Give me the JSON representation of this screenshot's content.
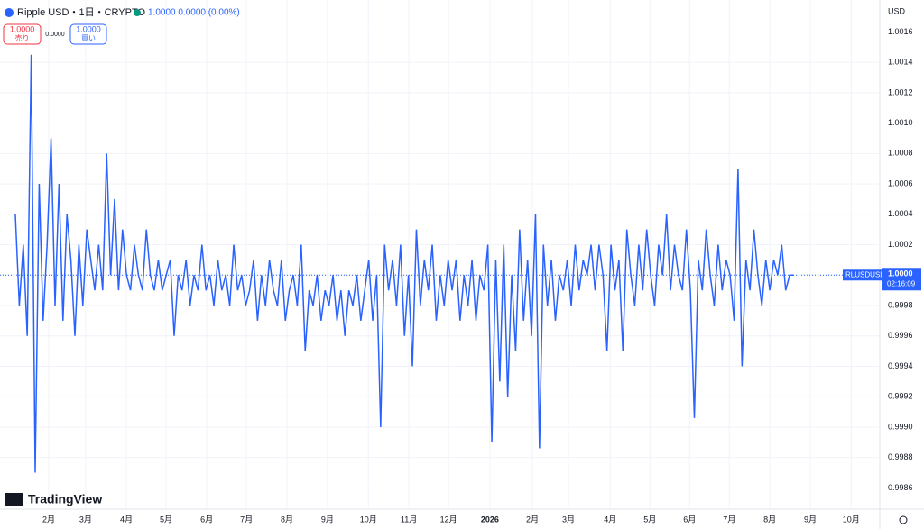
{
  "header": {
    "symbol": "Ripple USD・1日・CRYPTO",
    "quote": "1.0000 0.0000 (0.00%)",
    "sell_price": "1.0000",
    "sell_label": "売り",
    "spread": "0.0000",
    "buy_price": "1.0000",
    "buy_label": "買い",
    "currency": "USD",
    "logo": "TradingView"
  },
  "chart_data": {
    "type": "line",
    "series": [
      {
        "name": "RLUSDUSD",
        "color": "#2962ff",
        "values": [
          1.0004,
          0.9998,
          1.0002,
          0.9996,
          1.00145,
          0.9987,
          1.0006,
          0.9997,
          1.0002,
          1.0009,
          0.9998,
          1.0006,
          0.9997,
          1.0004,
          1.0001,
          0.9996,
          1.0002,
          0.9998,
          1.0003,
          1.0001,
          0.9999,
          1.0002,
          0.9999,
          1.0008,
          1.0,
          1.0005,
          0.9999,
          1.0003,
          1.0,
          0.9999,
          1.0002,
          1.0,
          0.9999,
          1.0003,
          1.0,
          0.9999,
          1.0001,
          0.9999,
          1.0,
          1.0001,
          0.9996,
          1.0,
          0.9999,
          1.0001,
          0.9998,
          1.0,
          0.9999,
          1.0002,
          0.9999,
          1.0,
          0.9998,
          1.0001,
          0.9999,
          1.0,
          0.9998,
          1.0002,
          0.9999,
          1.0,
          0.9998,
          0.9999,
          1.0001,
          0.9997,
          1.0,
          0.9998,
          1.0001,
          0.9999,
          0.9998,
          1.0001,
          0.9997,
          0.9999,
          1.0,
          0.9998,
          1.0002,
          0.9995,
          0.9999,
          0.9998,
          1.0,
          0.9997,
          0.9999,
          0.9998,
          1.0,
          0.9997,
          0.9999,
          0.9996,
          0.9999,
          0.9998,
          1.0,
          0.9997,
          0.9999,
          1.0001,
          0.9997,
          1.0,
          0.999,
          1.0002,
          0.9999,
          1.0001,
          0.9998,
          1.0002,
          0.9996,
          1.0,
          0.9994,
          1.0003,
          0.9998,
          1.0001,
          0.9999,
          1.0002,
          0.9997,
          1.0,
          0.9998,
          1.0001,
          0.9999,
          1.0001,
          0.9997,
          1.0,
          0.9998,
          1.0001,
          0.9997,
          1.0,
          0.9999,
          1.0002,
          0.9989,
          1.0001,
          0.9993,
          1.0002,
          0.9992,
          1.0,
          0.9995,
          1.0003,
          0.9997,
          1.0001,
          0.9996,
          1.0004,
          0.99886,
          1.0002,
          0.9998,
          1.0001,
          0.9997,
          1.0,
          0.9999,
          1.0001,
          0.9998,
          1.0002,
          0.9999,
          1.0001,
          1.0,
          1.0002,
          0.9999,
          1.0002,
          1.0,
          0.9995,
          1.0002,
          0.9999,
          1.0001,
          0.9995,
          1.0003,
          1.0,
          0.9998,
          1.0002,
          0.9999,
          1.0003,
          1.0,
          0.9998,
          1.0002,
          1.0,
          1.0004,
          0.9999,
          1.0002,
          1.0,
          0.9999,
          1.0003,
          0.9999,
          0.99906,
          1.0001,
          0.9999,
          1.0003,
          1.0,
          0.9998,
          1.0002,
          0.9999,
          1.0001,
          1.0,
          0.9997,
          1.0007,
          0.9994,
          1.0001,
          0.9999,
          1.0003,
          1.0,
          0.9998,
          1.0001,
          0.9999,
          1.0001,
          1.0,
          1.0002,
          0.9999,
          1.0,
          1.0
        ]
      }
    ],
    "last_price": {
      "value": 1,
      "label": "1.0000"
    },
    "countdown": "02:16:09",
    "xlim": [
      -3.86,
      217.7
    ],
    "xticks": [
      {
        "value": 8.4,
        "label": "2月"
      },
      {
        "value": 17.7,
        "label": "3月"
      },
      {
        "value": 27.95,
        "label": "4月"
      },
      {
        "value": 37.95,
        "label": "5月"
      },
      {
        "value": 48.2,
        "label": "6月"
      },
      {
        "value": 58.2,
        "label": "7月"
      },
      {
        "value": 68.4,
        "label": "8月"
      },
      {
        "value": 78.6,
        "label": "9月"
      },
      {
        "value": 88.9,
        "label": "10月"
      },
      {
        "value": 99.1,
        "label": "11月"
      },
      {
        "value": 109.1,
        "label": "12月"
      },
      {
        "value": 119.5,
        "label": "2026"
      },
      {
        "value": 130.2,
        "label": "2月"
      },
      {
        "value": 139.3,
        "label": "3月"
      },
      {
        "value": 149.8,
        "label": "4月"
      },
      {
        "value": 159.8,
        "label": "5月"
      },
      {
        "value": 169.8,
        "label": "6月"
      },
      {
        "value": 179.8,
        "label": "7月"
      },
      {
        "value": 190,
        "label": "8月"
      },
      {
        "value": 200.2,
        "label": "9月"
      },
      {
        "value": 210.5,
        "label": "10月"
      }
    ],
    "ylim": [
      0.99846,
      1.00181
    ],
    "yticks": [
      0.9986,
      0.9988,
      {
        "value": 0.999,
        "label": "0.9990"
      },
      0.9992,
      0.9994,
      0.9996,
      0.9998,
      {
        "value": 1,
        "label": "1.0000"
      },
      1.0002,
      1.0004,
      1.0006,
      1.0008,
      {
        "value": 1.001,
        "label": "1.0010"
      },
      1.0012,
      1.0014,
      1.0016
    ],
    "grid": true
  }
}
